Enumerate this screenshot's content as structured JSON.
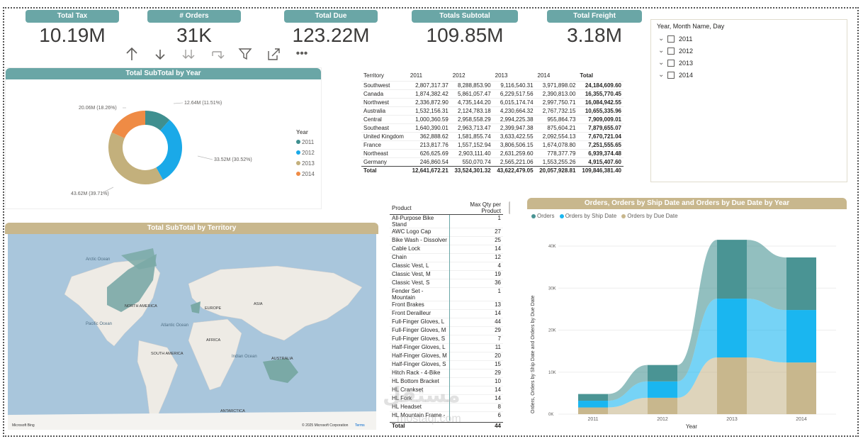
{
  "kpis": [
    {
      "title": "Total Tax",
      "value": "10.19M"
    },
    {
      "title": "# Orders",
      "value": "31K"
    },
    {
      "title": "Total Due",
      "value": "123.22M"
    },
    {
      "title": "Totals Subtotal",
      "value": "109.85M"
    },
    {
      "title": "Total Freight",
      "value": "3.18M"
    }
  ],
  "toolbar": {
    "more": "•••"
  },
  "slicer": {
    "title": "Year, Month Name, Day",
    "items": [
      "2011",
      "2012",
      "2013",
      "2014"
    ]
  },
  "donut": {
    "title": "Total SubTotal by Year",
    "legend_title": "Year",
    "colors": [
      "#3f8f8f",
      "#1aa9e8",
      "#c3b07c",
      "#ef8b45"
    ],
    "labels": [
      "12.64M (11.51%)",
      "33.52M (30.52%)",
      "43.62M (39.71%)",
      "20.06M (18.26%)"
    ]
  },
  "matrix": {
    "headers": [
      "Territory",
      "2011",
      "2012",
      "2013",
      "2014",
      "Total"
    ],
    "rows": [
      [
        "Southwest",
        "2,807,317.37",
        "8,288,853.90",
        "9,116,540.31",
        "3,971,898.02",
        "24,184,609.60"
      ],
      [
        "Canada",
        "1,874,382.42",
        "5,861,057.47",
        "6,229,517.56",
        "2,390,813.00",
        "16,355,770.45"
      ],
      [
        "Northwest",
        "2,336,872.90",
        "4,735,144.20",
        "6,015,174.74",
        "2,997,750.71",
        "16,084,942.55"
      ],
      [
        "Australia",
        "1,532,156.31",
        "2,124,783.18",
        "4,230,664.32",
        "2,767,732.15",
        "10,655,335.96"
      ],
      [
        "Central",
        "1,000,360.59",
        "2,958,558.29",
        "2,994,225.38",
        "955,864.73",
        "7,909,009.01"
      ],
      [
        "Southeast",
        "1,640,390.01",
        "2,963,713.47",
        "2,399,947.38",
        "875,604.21",
        "7,879,655.07"
      ],
      [
        "United Kingdom",
        "362,888.62",
        "1,581,855.74",
        "3,633,422.55",
        "2,092,554.13",
        "7,670,721.04"
      ],
      [
        "France",
        "213,817.76",
        "1,557,152.94",
        "3,806,506.15",
        "1,674,078.80",
        "7,251,555.65"
      ],
      [
        "Northeast",
        "626,625.69",
        "2,903,111.40",
        "2,631,259.60",
        "778,377.79",
        "6,939,374.48"
      ],
      [
        "Germany",
        "246,860.54",
        "550,070.74",
        "2,565,221.06",
        "1,553,255.26",
        "4,915,407.60"
      ]
    ],
    "total": [
      "Total",
      "12,641,672.21",
      "33,524,301.32",
      "43,622,479.05",
      "20,057,928.81",
      "109,846,381.40"
    ]
  },
  "map": {
    "title": "Total SubTotal by Territory",
    "labels": [
      "Arctic Ocean",
      "NORTH AMERICA",
      "EUROPE",
      "ASIA",
      "Pacific Ocean",
      "Atlantic Ocean",
      "AFRICA",
      "SOUTH AMERICA",
      "Indian Ocean",
      "AUSTRALIA",
      "ANTARCTICA"
    ],
    "attribution": "© 2025 Microsoft Corporation",
    "terms": "Terms",
    "brand": "Microsoft Bing"
  },
  "product_table": {
    "headers": [
      "Product",
      "Max Qty per Product"
    ],
    "rows": [
      [
        "All-Purpose Bike Stand",
        "1"
      ],
      [
        "AWC Logo Cap",
        "27"
      ],
      [
        "Bike Wash - Dissolver",
        "25"
      ],
      [
        "Cable Lock",
        "14"
      ],
      [
        "Chain",
        "12"
      ],
      [
        "Classic Vest, L",
        "4"
      ],
      [
        "Classic Vest, M",
        "19"
      ],
      [
        "Classic Vest, S",
        "36"
      ],
      [
        "Fender Set - Mountain",
        "1"
      ],
      [
        "Front Brakes",
        "13"
      ],
      [
        "Front Derailleur",
        "14"
      ],
      [
        "Full-Finger Gloves, L",
        "44"
      ],
      [
        "Full-Finger Gloves, M",
        "29"
      ],
      [
        "Full-Finger Gloves, S",
        "7"
      ],
      [
        "Half-Finger Gloves, L",
        "11"
      ],
      [
        "Half-Finger Gloves, M",
        "20"
      ],
      [
        "Half-Finger Gloves, S",
        "15"
      ],
      [
        "Hitch Rack - 4-Bike",
        "29"
      ],
      [
        "HL Bottom Bracket",
        "10"
      ],
      [
        "HL Crankset",
        "14"
      ],
      [
        "HL Fork",
        "14"
      ],
      [
        "HL Headset",
        "8"
      ],
      [
        "HL Mountain Frame -",
        "6"
      ]
    ],
    "total_label": "Total",
    "total_value": "44"
  },
  "watermark": {
    "main": "مستقل",
    "sub": "mostaql.com"
  },
  "chart_data": [
    {
      "type": "pie",
      "title": "Total SubTotal by Year",
      "categories": [
        "2011",
        "2012",
        "2013",
        "2014"
      ],
      "values": [
        12.64,
        33.52,
        43.62,
        20.06
      ],
      "unit": "M",
      "legend_title": "Year"
    },
    {
      "type": "area",
      "title": "Orders, Orders by Ship Date and Orders by Due Date by Year",
      "categories": [
        "2011",
        "2012",
        "2013",
        "2014"
      ],
      "series": [
        {
          "name": "Orders",
          "values": [
            1600,
            3900,
            14000,
            12500
          ]
        },
        {
          "name": "Orders by Ship Date",
          "values": [
            1600,
            3900,
            14000,
            12500
          ]
        },
        {
          "name": "Orders by Due Date",
          "values": [
            1600,
            3900,
            13500,
            12300
          ]
        }
      ],
      "xlabel": "Year",
      "ylabel": "Orders, Orders by Ship Date and Orders by Due Date",
      "ylim": [
        0,
        40000
      ],
      "yticks": [
        "0K",
        "10K",
        "20K",
        "30K",
        "40K"
      ],
      "colors": [
        "#4a9494",
        "#1ab6f0",
        "#c8b78d"
      ]
    }
  ]
}
